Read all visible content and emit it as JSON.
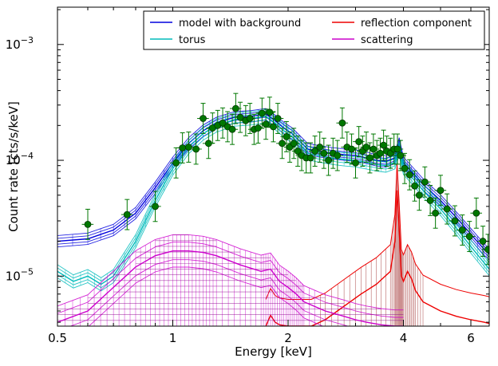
{
  "chart_data": {
    "type": "line",
    "xlabel": "Energy [keV]",
    "ylabel": "Count rate [cts/s/keV]",
    "xscale": "log",
    "yscale": "log",
    "xlim": [
      0.5,
      6.7
    ],
    "ylim": [
      3.7e-06,
      0.0021
    ],
    "x_ticks": [
      {
        "value": 0.5,
        "label": "0.5"
      },
      {
        "value": 1,
        "label": "1"
      },
      {
        "value": 2,
        "label": "2"
      },
      {
        "value": 4,
        "label": "4"
      },
      {
        "value": 6,
        "label": "6"
      }
    ],
    "y_ticks": [
      {
        "value": 1e-05,
        "label": "10",
        "exp": "−5"
      },
      {
        "value": 0.0001,
        "label": "10",
        "exp": "−4"
      },
      {
        "value": 0.001,
        "label": "10",
        "exp": "−3"
      }
    ],
    "legend_position": "top-right",
    "legend_columns": 2,
    "series": [
      {
        "name": "model with background",
        "color": "#0000dd",
        "band_spread": 0.12,
        "x": [
          0.5,
          0.6,
          0.7,
          0.8,
          0.9,
          1.0,
          1.1,
          1.2,
          1.3,
          1.45,
          1.6,
          1.75,
          1.85,
          1.95,
          2.05,
          2.15,
          2.25,
          2.4,
          2.6,
          2.8,
          3.0,
          3.2,
          3.4,
          3.6,
          3.8,
          3.9,
          4.0,
          4.2,
          4.5,
          5.0,
          5.5,
          6.0,
          6.5,
          6.7
        ],
        "y": [
          2e-05,
          2.1e-05,
          2.5e-05,
          3.5e-05,
          5.8e-05,
          9.5e-05,
          0.00014,
          0.00018,
          0.00021,
          0.000235,
          0.00024,
          0.00025,
          0.00022,
          0.00019,
          0.00017,
          0.000145,
          0.000125,
          0.00012,
          0.000115,
          0.000112,
          0.00011,
          0.000105,
          0.0001,
          9.8e-05,
          0.000105,
          0.00014,
          9.5e-05,
          8e-05,
          6.2e-05,
          4.5e-05,
          3.2e-05,
          2.3e-05,
          1.7e-05,
          1.55e-05
        ]
      },
      {
        "name": "torus",
        "color": "#00bbbb",
        "band_spread": 0.14,
        "x": [
          0.5,
          0.55,
          0.6,
          0.65,
          0.7,
          0.8,
          0.9,
          1.0,
          1.1,
          1.2,
          1.3,
          1.45,
          1.6,
          1.75,
          1.85,
          1.95,
          2.05,
          2.15,
          2.25,
          2.4,
          2.6,
          2.8,
          3.0,
          3.2,
          3.4,
          3.6,
          3.8,
          3.9,
          4.0,
          4.2,
          4.5,
          5.0,
          5.5,
          6.0,
          6.5,
          6.7
        ],
        "y": [
          1.1e-05,
          9e-06,
          1e-05,
          8.5e-06,
          1e-05,
          2e-05,
          4.5e-05,
          8.5e-05,
          0.00013,
          0.00017,
          0.0002,
          0.000225,
          0.00023,
          0.00024,
          0.00021,
          0.00018,
          0.00016,
          0.000135,
          0.000115,
          0.00011,
          0.000105,
          0.000102,
          0.0001,
          9.6e-05,
          9.2e-05,
          9e-05,
          9.6e-05,
          0.000125,
          8.6e-05,
          7.2e-05,
          5.5e-05,
          3.8e-05,
          2.6e-05,
          1.8e-05,
          1.3e-05,
          1.15e-05
        ]
      },
      {
        "name": "reflection component",
        "color": "#ee0000",
        "band_spread": 0.0,
        "x": [
          1.75,
          1.8,
          1.85,
          1.9,
          2.0,
          2.1,
          2.3,
          2.5,
          2.8,
          3.1,
          3.4,
          3.7,
          3.8,
          3.85,
          3.9,
          3.95,
          4.0,
          4.1,
          4.2,
          4.3,
          4.5,
          5.0,
          5.5,
          6.0,
          6.5,
          6.7
        ],
        "y": [
          3.7e-06,
          4.6e-06,
          4e-06,
          3.8e-06,
          3.7e-06,
          3.7e-06,
          3.7e-06,
          4.2e-06,
          5.5e-06,
          7e-06,
          8.5e-06,
          1.1e-05,
          2e-05,
          5.5e-05,
          2.5e-05,
          1e-05,
          9e-06,
          1.1e-05,
          9.5e-06,
          7.5e-06,
          6e-06,
          5e-06,
          4.5e-06,
          4.2e-06,
          4e-06,
          3.9e-06
        ]
      },
      {
        "name": "scattering",
        "color": "#cc00cc",
        "band_spread": 0.38,
        "x": [
          0.5,
          0.6,
          0.7,
          0.8,
          0.9,
          1.0,
          1.1,
          1.2,
          1.3,
          1.5,
          1.7,
          1.8,
          1.9,
          2.0,
          2.1,
          2.2,
          2.5,
          2.8,
          3.0,
          3.2,
          3.5,
          3.8,
          4.0
        ],
        "y": [
          4e-06,
          5e-06,
          8e-06,
          1.2e-05,
          1.5e-05,
          1.65e-05,
          1.65e-05,
          1.6e-05,
          1.5e-05,
          1.25e-05,
          1.1e-05,
          1.15e-05,
          9e-06,
          8e-06,
          7e-06,
          6e-06,
          5e-06,
          4.5e-06,
          4.2e-06,
          4e-06,
          3.8e-06,
          3.7e-06,
          3.7e-06
        ]
      }
    ],
    "data_points": {
      "color": "#007700",
      "x": [
        0.6,
        0.76,
        0.9,
        1.02,
        1.06,
        1.1,
        1.15,
        1.2,
        1.24,
        1.27,
        1.31,
        1.35,
        1.39,
        1.43,
        1.46,
        1.5,
        1.55,
        1.59,
        1.63,
        1.67,
        1.71,
        1.75,
        1.79,
        1.83,
        1.88,
        1.93,
        1.98,
        2.02,
        2.07,
        2.12,
        2.17,
        2.23,
        2.29,
        2.35,
        2.42,
        2.48,
        2.55,
        2.62,
        2.69,
        2.77,
        2.85,
        2.93,
        3.0,
        3.06,
        3.13,
        3.2,
        3.27,
        3.34,
        3.41,
        3.48,
        3.55,
        3.62,
        3.7,
        3.78,
        3.86,
        3.93,
        4.03,
        4.15,
        4.28,
        4.4,
        4.55,
        4.7,
        4.85,
        5.0,
        5.2,
        5.45,
        5.7,
        5.95,
        6.2,
        6.45,
        6.65
      ],
      "y": [
        2.8e-05,
        3.4e-05,
        4e-05,
        9.5e-05,
        0.000128,
        0.00013,
        0.000125,
        0.00023,
        0.00014,
        0.00019,
        0.0002,
        0.00021,
        0.000195,
        0.000185,
        0.00028,
        0.000235,
        0.00022,
        0.00023,
        0.000185,
        0.00019,
        0.000255,
        0.000205,
        0.00026,
        0.000195,
        0.00023,
        0.00014,
        0.00016,
        0.00013,
        0.00014,
        0.00012,
        0.00011,
        0.000105,
        0.000105,
        0.00012,
        0.00013,
        0.000115,
        0.0001,
        0.000115,
        0.00011,
        0.00021,
        0.00013,
        0.000125,
        9.5e-05,
        0.000145,
        0.00012,
        0.00013,
        0.000105,
        0.000125,
        0.00011,
        0.000115,
        0.000135,
        0.00012,
        0.000115,
        0.000125,
        0.000125,
        0.00011,
        8.5e-05,
        7.5e-05,
        6e-05,
        5e-05,
        6.5e-05,
        4.5e-05,
        3.5e-05,
        5.5e-05,
        3.8e-05,
        3e-05,
        2.5e-05,
        2.2e-05,
        3.5e-05,
        2e-05,
        1.7e-05
      ],
      "y_err_frac": 0.35
    }
  }
}
